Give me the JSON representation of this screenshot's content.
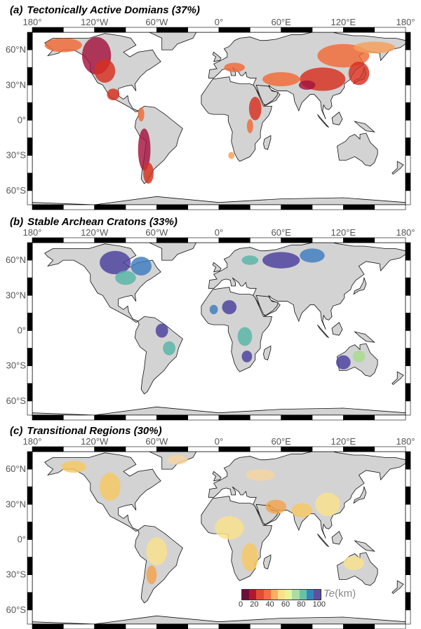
{
  "panels": [
    {
      "letter": "(a)",
      "title": "Tectonically Active Domians (37%)",
      "palette": "warm"
    },
    {
      "letter": "(b)",
      "title": "Stable Archean Cratons (33%)",
      "palette": "cool"
    },
    {
      "letter": "(c)",
      "title": "Transitional Regions (30%)",
      "palette": "mid"
    }
  ],
  "lon_labels": [
    "180°",
    "120°W",
    "60°W",
    "0°",
    "60°E",
    "120°E",
    "180°"
  ],
  "lat_labels": [
    "60°N",
    "30°N",
    "0°",
    "30°S",
    "60°S"
  ],
  "legend": {
    "var": "Te",
    "unit": "(km)",
    "ticks": [
      "0",
      "20",
      "40",
      "60",
      "80",
      "100"
    ],
    "colors": [
      "#6b0f3a",
      "#b2182b",
      "#e34a33",
      "#f46d43",
      "#fdae61",
      "#fee08b",
      "#e6f598",
      "#abdda4",
      "#66c2a5",
      "#3288bd",
      "#5e4fa2"
    ]
  },
  "colors": {
    "land": "#d3d3d3",
    "coast": "#111111",
    "warm": [
      "#a3123e",
      "#d7301f",
      "#f16a36",
      "#f5a05a"
    ],
    "cool": [
      "#4a3f9e",
      "#3e7cc0",
      "#55b6a6",
      "#a7dc8c"
    ],
    "mid": [
      "#f3a24a",
      "#f8c860",
      "#fbe28c",
      "#f6d6a0"
    ]
  }
}
